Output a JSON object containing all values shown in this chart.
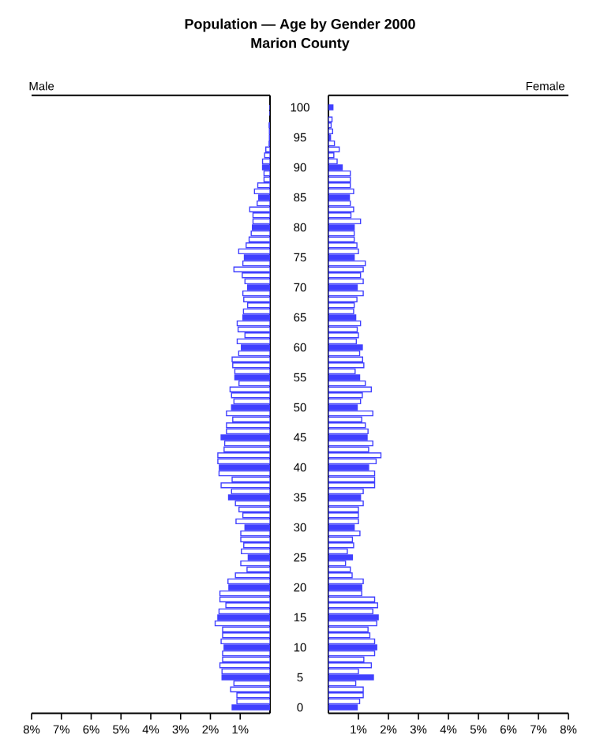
{
  "chart_data": [
    {
      "type": "bar",
      "orientation": "horizontal",
      "title": "Population — Age by Gender 2000",
      "subtitle": "Marion County",
      "tick_labels": "x",
      "categories": [
        "100",
        null,
        null,
        null,
        null,
        "95",
        null,
        null,
        null,
        null,
        "90",
        null,
        null,
        null,
        null,
        "85",
        null,
        null,
        null,
        null,
        "80",
        null,
        null,
        null,
        null,
        "75",
        null,
        null,
        null,
        null,
        "70",
        null,
        null,
        null,
        null,
        "65",
        null,
        null,
        null,
        null,
        "60",
        null,
        null,
        null,
        null,
        "55",
        null,
        null,
        null,
        null,
        "50",
        null,
        null,
        null,
        null,
        "45",
        null,
        null,
        null,
        null,
        "40",
        null,
        null,
        null,
        null,
        "35",
        null,
        null,
        null,
        null,
        "30",
        null,
        null,
        null,
        null,
        "25",
        null,
        null,
        null,
        null,
        "20",
        null,
        null,
        null,
        null,
        "15",
        null,
        null,
        null,
        null,
        "10",
        null,
        null,
        null,
        null,
        "5",
        null,
        null,
        null,
        null,
        "0"
      ],
      "xlim": [
        8,
        0
      ],
      "xticks": [
        {
          "value": 8,
          "label": "8%"
        },
        {
          "value": 7,
          "label": "7%"
        },
        {
          "value": 6,
          "label": "6%"
        },
        {
          "value": 5,
          "label": "5%"
        },
        {
          "value": 4,
          "label": "4%"
        },
        {
          "value": 3,
          "label": "3%"
        },
        {
          "value": 2,
          "label": "2%"
        },
        {
          "value": 1,
          "label": "1%"
        }
      ],
      "series": [
        {
          "name": "Male",
          "color": "#4040ff",
          "values": [
            0,
            0,
            null,
            0.03,
            0.02,
            0.02,
            0.03,
            0.14,
            0.18,
            0.25,
            0.25,
            0.2,
            0.2,
            0.41,
            0.52,
            0.38,
            0.43,
            0.68,
            0.57,
            0.57,
            0.59,
            0.63,
            0.7,
            0.8,
            1.05,
            0.86,
            0.91,
            1.21,
            0.93,
            0.84,
            0.75,
            0.91,
            0.88,
            0.75,
            0.89,
            0.91,
            1.1,
            1.07,
            0.84,
            1.1,
            0.96,
            1.05,
            1.27,
            1.25,
            1.18,
            1.18,
            1.04,
            1.34,
            1.29,
            1.21,
            1.29,
            1.46,
            1.25,
            1.46,
            1.46,
            1.64,
            1.52,
            1.54,
            1.75,
            1.75,
            1.7,
            1.71,
            1.27,
            1.64,
            1.29,
            1.39,
            1.16,
            1.04,
            0.91,
            1.14,
            0.84,
            0.98,
            0.98,
            0.88,
            0.96,
            0.73,
            0.98,
            0.77,
            1.16,
            1.41,
            1.38,
            1.68,
            1.68,
            1.48,
            1.71,
            1.75,
            1.84,
            1.59,
            1.59,
            1.64,
            1.54,
            1.59,
            1.59,
            1.68,
            1.61,
            1.61,
            1.21,
            1.32,
            1.11,
            1.11,
            1.27
          ],
          "colors": [
            "#4040ff",
            "#ffffff",
            "#ffffff",
            "#ffffff",
            "#ffffff",
            "#4040ff",
            "#ffffff",
            "#ffffff",
            "#ffffff",
            "#ffffff",
            "#4040ff",
            "#ffffff",
            "#ffffff",
            "#ffffff",
            "#ffffff",
            "#4040ff",
            "#ffffff",
            "#ffffff",
            "#ffffff",
            "#ffffff",
            "#4040ff",
            "#ffffff",
            "#ffffff",
            "#ffffff",
            "#ffffff",
            "#4040ff",
            "#ffffff",
            "#ffffff",
            "#ffffff",
            "#ffffff",
            "#4040ff",
            "#ffffff",
            "#ffffff",
            "#ffffff",
            "#ffffff",
            "#4040ff",
            "#ffffff",
            "#ffffff",
            "#ffffff",
            "#ffffff",
            "#4040ff",
            "#ffffff",
            "#ffffff",
            "#ffffff",
            "#ffffff",
            "#4040ff",
            "#ffffff",
            "#ffffff",
            "#ffffff",
            "#ffffff",
            "#4040ff",
            "#ffffff",
            "#ffffff",
            "#ffffff",
            "#ffffff",
            "#4040ff",
            "#ffffff",
            "#ffffff",
            "#ffffff",
            "#ffffff",
            "#4040ff",
            "#ffffff",
            "#ffffff",
            "#ffffff",
            "#ffffff",
            "#4040ff",
            "#ffffff",
            "#ffffff",
            "#ffffff",
            "#ffffff",
            "#4040ff",
            "#ffffff",
            "#ffffff",
            "#ffffff",
            "#ffffff",
            "#4040ff",
            "#ffffff",
            "#ffffff",
            "#ffffff",
            "#ffffff",
            "#4040ff",
            "#ffffff",
            "#ffffff",
            "#ffffff",
            "#ffffff",
            "#4040ff",
            "#ffffff",
            "#ffffff",
            "#ffffff",
            "#ffffff",
            "#4040ff",
            "#ffffff",
            "#ffffff",
            "#ffffff",
            "#ffffff",
            "#4040ff",
            "#ffffff",
            "#ffffff",
            "#ffffff",
            "#ffffff",
            "#4040ff"
          ]
        }
      ]
    },
    {
      "type": "bar",
      "orientation": "horizontal",
      "categories": [
        "100",
        null,
        null,
        null,
        null,
        "95",
        null,
        null,
        null,
        null,
        "90",
        null,
        null,
        null,
        null,
        "85",
        null,
        null,
        null,
        null,
        "80",
        null,
        null,
        null,
        null,
        "75",
        null,
        null,
        null,
        null,
        "70",
        null,
        null,
        null,
        null,
        "65",
        null,
        null,
        null,
        null,
        "60",
        null,
        null,
        null,
        null,
        "55",
        null,
        null,
        null,
        null,
        "50",
        null,
        null,
        null,
        null,
        "45",
        null,
        null,
        null,
        null,
        "40",
        null,
        null,
        null,
        null,
        "35",
        null,
        null,
        null,
        null,
        "30",
        null,
        null,
        null,
        null,
        "25",
        null,
        null,
        null,
        null,
        "20",
        null,
        null,
        null,
        null,
        "15",
        null,
        null,
        null,
        null,
        "10",
        null,
        null,
        null,
        null,
        "5",
        null,
        null,
        null,
        null,
        "0"
      ],
      "xlim": [
        0,
        8
      ],
      "xticks": [
        {
          "value": 1,
          "label": "1%"
        },
        {
          "value": 2,
          "label": "2%"
        },
        {
          "value": 3,
          "label": "3%"
        },
        {
          "value": 4,
          "label": "4%"
        },
        {
          "value": 5,
          "label": "5%"
        },
        {
          "value": 6,
          "label": "6%"
        },
        {
          "value": 7,
          "label": "7%"
        },
        {
          "value": 8,
          "label": "8%"
        }
      ],
      "series": [
        {
          "name": "Female",
          "color": "#4040ff",
          "values": [
            0.15,
            null,
            0.12,
            0.09,
            0.14,
            0.07,
            0.2,
            0.36,
            0.18,
            0.29,
            0.46,
            0.73,
            0.73,
            0.73,
            0.84,
            0.7,
            0.73,
            0.84,
            0.75,
            1.07,
            0.86,
            0.86,
            0.86,
            0.95,
            1.0,
            0.86,
            1.23,
            1.16,
            1.07,
            1.16,
            0.96,
            1.16,
            0.95,
            0.86,
            0.84,
            0.91,
            1.07,
            0.96,
            1.0,
            0.93,
            1.13,
            1.04,
            1.14,
            1.18,
            0.89,
            1.04,
            1.23,
            1.43,
            1.13,
            1.07,
            0.96,
            1.48,
            1.11,
            1.23,
            1.32,
            1.29,
            1.48,
            1.34,
            1.75,
            1.59,
            1.34,
            1.54,
            1.54,
            1.54,
            1.16,
            1.07,
            1.16,
            1.0,
            1.0,
            1.0,
            0.86,
            1.05,
            0.8,
            0.84,
            0.63,
            0.8,
            0.57,
            0.73,
            0.79,
            1.16,
            1.11,
            1.11,
            1.54,
            1.64,
            1.48,
            1.66,
            1.61,
            1.32,
            1.38,
            1.54,
            1.61,
            1.54,
            1.18,
            1.43,
            1.0,
            1.5,
            0.91,
            1.16,
            1.16,
            1.04,
            0.96
          ],
          "colors": [
            "#4040ff",
            "#ffffff",
            "#ffffff",
            "#ffffff",
            "#ffffff",
            "#4040ff",
            "#ffffff",
            "#ffffff",
            "#ffffff",
            "#ffffff",
            "#4040ff",
            "#ffffff",
            "#ffffff",
            "#ffffff",
            "#ffffff",
            "#4040ff",
            "#ffffff",
            "#ffffff",
            "#ffffff",
            "#ffffff",
            "#4040ff",
            "#ffffff",
            "#ffffff",
            "#ffffff",
            "#ffffff",
            "#4040ff",
            "#ffffff",
            "#ffffff",
            "#ffffff",
            "#ffffff",
            "#4040ff",
            "#ffffff",
            "#ffffff",
            "#ffffff",
            "#ffffff",
            "#4040ff",
            "#ffffff",
            "#ffffff",
            "#ffffff",
            "#ffffff",
            "#4040ff",
            "#ffffff",
            "#ffffff",
            "#ffffff",
            "#ffffff",
            "#4040ff",
            "#ffffff",
            "#ffffff",
            "#ffffff",
            "#ffffff",
            "#4040ff",
            "#ffffff",
            "#ffffff",
            "#ffffff",
            "#ffffff",
            "#4040ff",
            "#ffffff",
            "#ffffff",
            "#ffffff",
            "#ffffff",
            "#4040ff",
            "#ffffff",
            "#ffffff",
            "#ffffff",
            "#ffffff",
            "#4040ff",
            "#ffffff",
            "#ffffff",
            "#ffffff",
            "#ffffff",
            "#4040ff",
            "#ffffff",
            "#ffffff",
            "#ffffff",
            "#ffffff",
            "#4040ff",
            "#ffffff",
            "#ffffff",
            "#ffffff",
            "#ffffff",
            "#4040ff",
            "#ffffff",
            "#ffffff",
            "#ffffff",
            "#ffffff",
            "#4040ff",
            "#ffffff",
            "#ffffff",
            "#ffffff",
            "#ffffff",
            "#4040ff",
            "#ffffff",
            "#ffffff",
            "#ffffff",
            "#ffffff",
            "#4040ff",
            "#ffffff",
            "#ffffff",
            "#ffffff",
            "#ffffff",
            "#4040ff"
          ]
        }
      ]
    }
  ]
}
